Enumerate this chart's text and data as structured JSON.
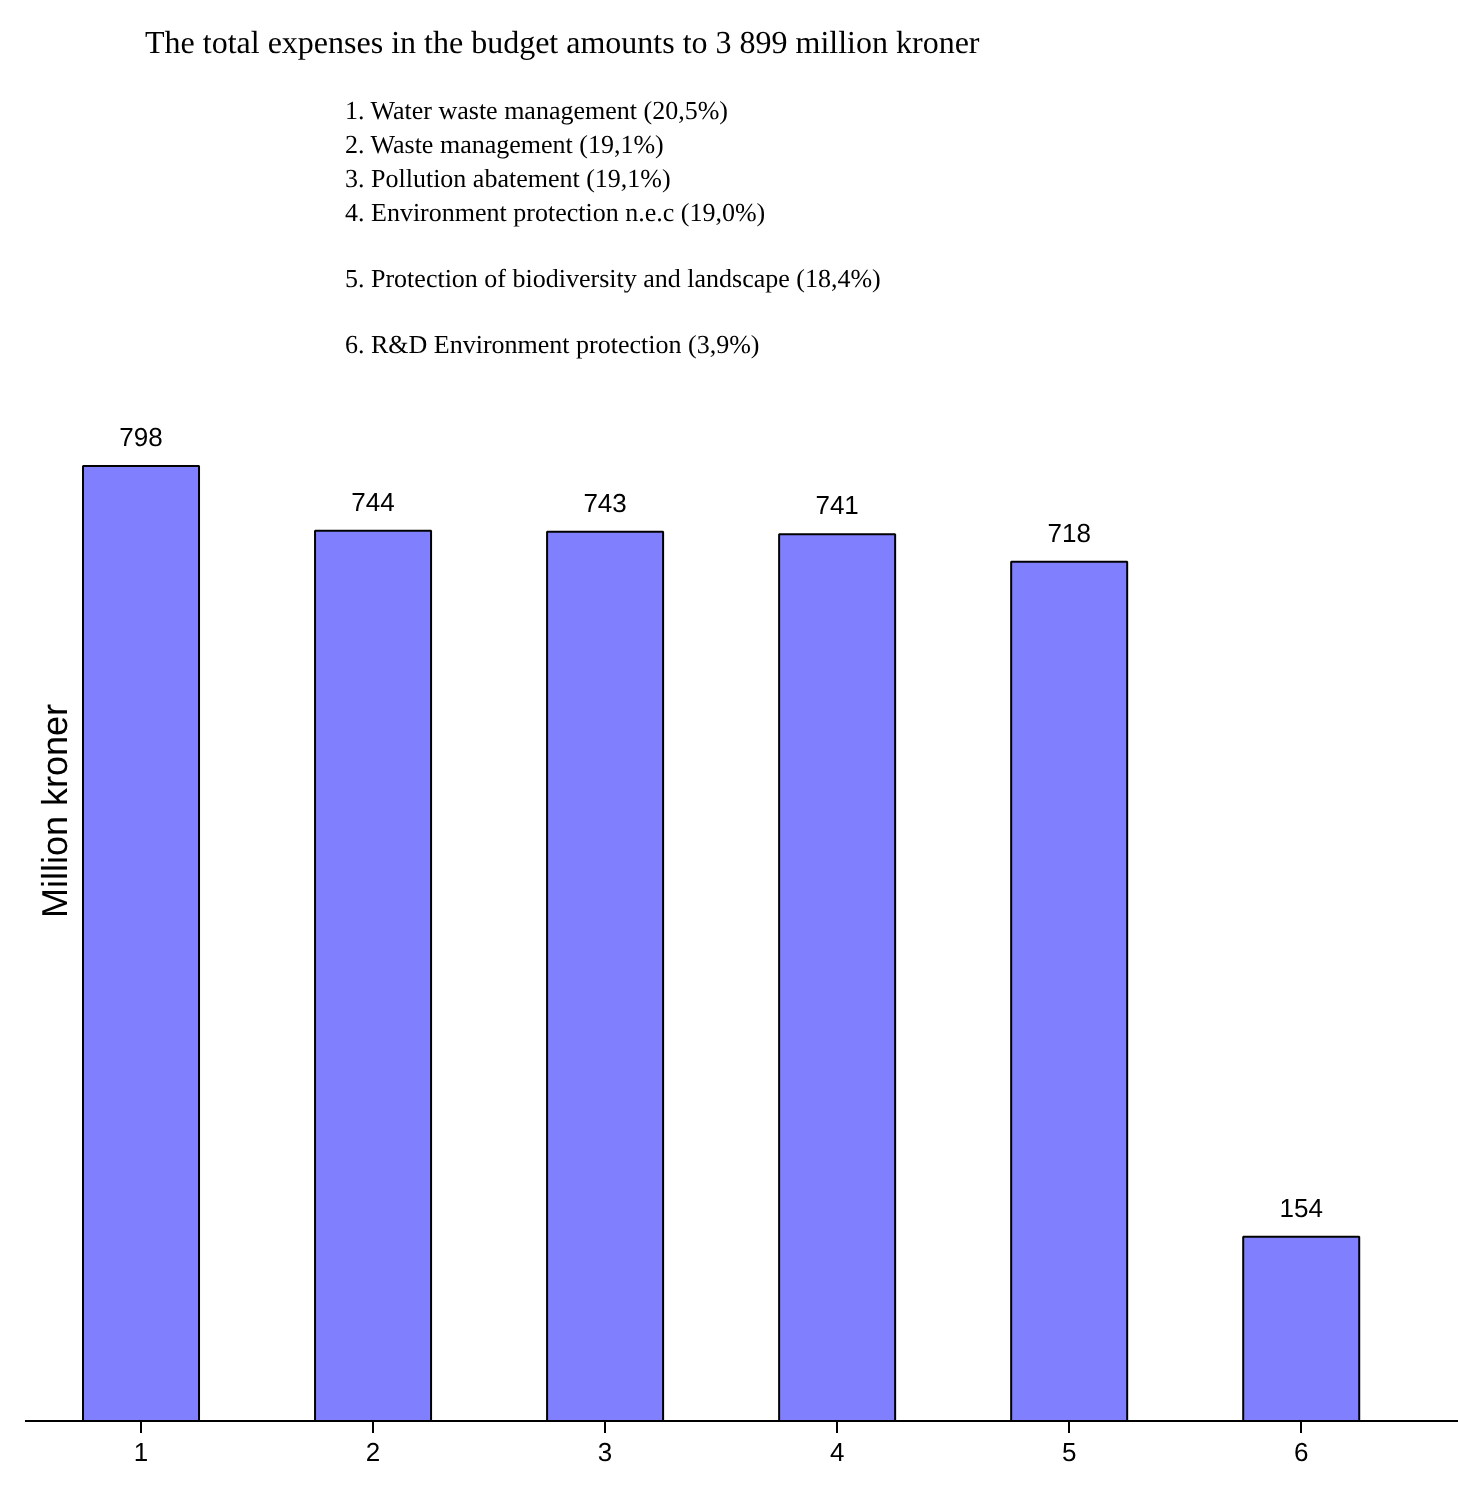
{
  "chart_data": {
    "type": "bar",
    "title": "The total expenses in the budget amounts to 3 899 million kroner",
    "annotations": [
      "1.  Water waste management (20,5%)",
      "2.  Waste management (19,1%)",
      "3.  Pollution abatement (19,1%)",
      "4.  Environment protection n.e.c (19,0%)",
      "5.  Protection of biodiversity and landscape (18,4%)",
      "6.  R&D Environment protection (3,9%)"
    ],
    "ylabel": "Million kroner",
    "categories": [
      "1",
      "2",
      "3",
      "4",
      "5",
      "6"
    ],
    "values": [
      798,
      744,
      743,
      741,
      718,
      154
    ],
    "color": "#8080ff",
    "data_labels": true,
    "grid": false
  }
}
